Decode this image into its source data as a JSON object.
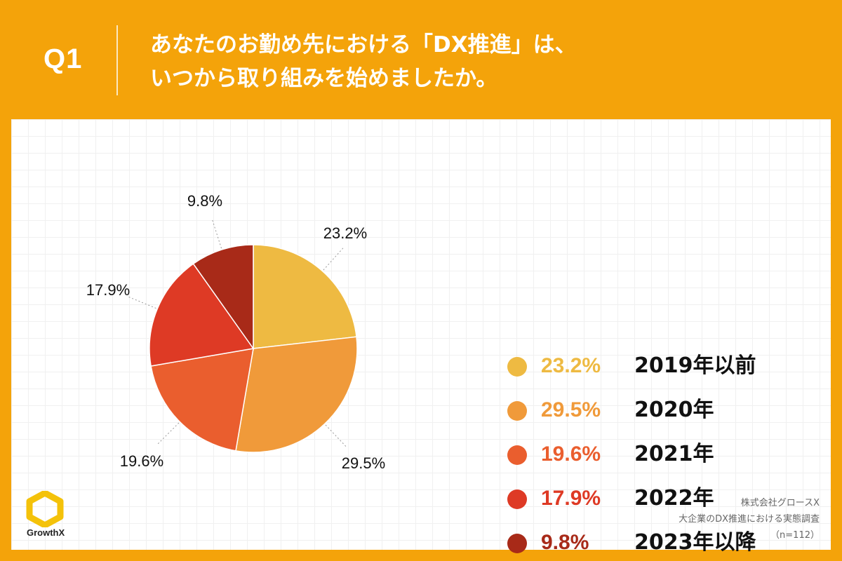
{
  "header": {
    "q_label": "Q1",
    "question_line1": "あなたのお勤め先における「DX推進」は、",
    "question_line2": "いつから取り組みを始めましたか。"
  },
  "colors": {
    "background": "#F4A30A",
    "series": [
      "#EEBA42",
      "#F09A3A",
      "#EA5E2E",
      "#DE3A25",
      "#A82A18"
    ],
    "legend_text": [
      "#EEBA42",
      "#F09A3A",
      "#EA5E2E",
      "#DE3A25",
      "#A82A18"
    ]
  },
  "chart_data": {
    "type": "pie",
    "title": "あなたのお勤め先における「DX推進」は、いつから取り組みを始めましたか。",
    "categories": [
      "2019年以前",
      "2020年",
      "2021年",
      "2022年",
      "2023年以降"
    ],
    "values": [
      23.2,
      29.5,
      19.6,
      17.9,
      9.8
    ],
    "labels": [
      "23.2%",
      "29.5%",
      "19.6%",
      "17.9%",
      "9.8%"
    ],
    "start": "12 o'clock",
    "direction": "clockwise",
    "legend_position": "right"
  },
  "logo": {
    "text": "GrowthX",
    "icon": "hexagon-ring-icon"
  },
  "source": {
    "company": "株式会社グロースX",
    "survey": "大企業のDX推進における実態調査",
    "sample": "（n=112）"
  }
}
